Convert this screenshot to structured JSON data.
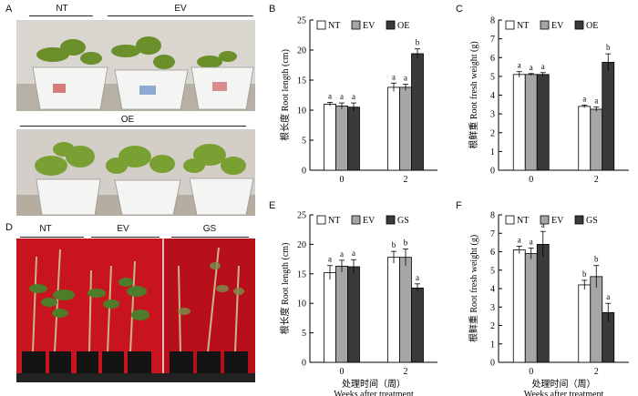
{
  "figure": {
    "panel_labels": [
      "A",
      "B",
      "C",
      "D",
      "E",
      "F"
    ],
    "photo_a": {
      "top_groups": [
        "NT",
        "EV"
      ],
      "bottom_group": "OE"
    },
    "photo_d": {
      "groups": [
        "NT",
        "EV",
        "GS"
      ]
    }
  },
  "colors": {
    "NT": "#ffffff",
    "EV": "#a6a6a6",
    "OE": "#3a3a3a",
    "GS": "#3a3a3a",
    "red_background": "#c8141e"
  },
  "chart_data": [
    {
      "panel": "B",
      "type": "bar",
      "categories": [
        "0",
        "2"
      ],
      "series": [
        {
          "name": "NT",
          "values": [
            11.0,
            13.8
          ],
          "errors": [
            0.3,
            0.7
          ],
          "letters": [
            "a",
            "a"
          ]
        },
        {
          "name": "EV",
          "values": [
            10.7,
            13.8
          ],
          "errors": [
            0.5,
            0.5
          ],
          "letters": [
            "a",
            "a"
          ]
        },
        {
          "name": "OE",
          "values": [
            10.5,
            19.4
          ],
          "errors": [
            0.7,
            0.8
          ],
          "letters": [
            "a",
            "b"
          ]
        }
      ],
      "ylabel": "根长度 Root length (cm)",
      "xlabel": "",
      "ylim": [
        0,
        25
      ],
      "yticks": [
        0,
        5,
        10,
        15,
        20,
        25
      ],
      "legend": "top"
    },
    {
      "panel": "C",
      "type": "bar",
      "categories": [
        "0",
        "2"
      ],
      "series": [
        {
          "name": "NT",
          "values": [
            5.1,
            3.4
          ],
          "errors": [
            0.15,
            0.07
          ],
          "letters": [
            "a",
            "a"
          ]
        },
        {
          "name": "EV",
          "values": [
            5.1,
            3.25
          ],
          "errors": [
            0.05,
            0.12
          ],
          "letters": [
            "a",
            "a"
          ]
        },
        {
          "name": "OE",
          "values": [
            5.1,
            5.75
          ],
          "errors": [
            0.1,
            0.45
          ],
          "letters": [
            "a",
            "b"
          ]
        }
      ],
      "ylabel": "根鲜重 Root fresh weight (g)",
      "xlabel": "",
      "ylim": [
        0,
        8
      ],
      "yticks": [
        0,
        1,
        2,
        3,
        4,
        5,
        6,
        7,
        8
      ],
      "legend": "top"
    },
    {
      "panel": "E",
      "type": "bar",
      "categories": [
        "0",
        "2"
      ],
      "series": [
        {
          "name": "NT",
          "values": [
            15.2,
            17.8
          ],
          "errors": [
            1.2,
            1.0
          ],
          "letters": [
            "a",
            "b"
          ]
        },
        {
          "name": "EV",
          "values": [
            16.3,
            17.8
          ],
          "errors": [
            1.0,
            1.4
          ],
          "letters": [
            "a",
            "b"
          ]
        },
        {
          "name": "GS",
          "values": [
            16.2,
            12.6
          ],
          "errors": [
            1.2,
            0.7
          ],
          "letters": [
            "a",
            "a"
          ]
        }
      ],
      "ylabel": "根长度 Root length (cm)",
      "xlabel": "处理时间（周） Weeks after treatment",
      "ylim": [
        0,
        25
      ],
      "yticks": [
        0,
        5,
        10,
        15,
        20,
        25
      ],
      "legend": "top"
    },
    {
      "panel": "F",
      "type": "bar",
      "categories": [
        "0",
        "2"
      ],
      "series": [
        {
          "name": "NT",
          "values": [
            6.1,
            4.2
          ],
          "errors": [
            0.2,
            0.25
          ],
          "letters": [
            "a",
            "b"
          ]
        },
        {
          "name": "EV",
          "values": [
            5.9,
            4.65
          ],
          "errors": [
            0.3,
            0.6
          ],
          "letters": [
            "a",
            "b"
          ]
        },
        {
          "name": "GS",
          "values": [
            6.4,
            2.7
          ],
          "errors": [
            0.7,
            0.5
          ],
          "letters": [
            "a",
            "a"
          ]
        }
      ],
      "ylabel": "根鲜重 Root fresh weight (g)",
      "xlabel": "处理时间（周） Weeks after treatment",
      "ylim": [
        0,
        8
      ],
      "yticks": [
        0,
        1,
        2,
        3,
        4,
        5,
        6,
        7,
        8
      ],
      "legend": "top"
    }
  ]
}
